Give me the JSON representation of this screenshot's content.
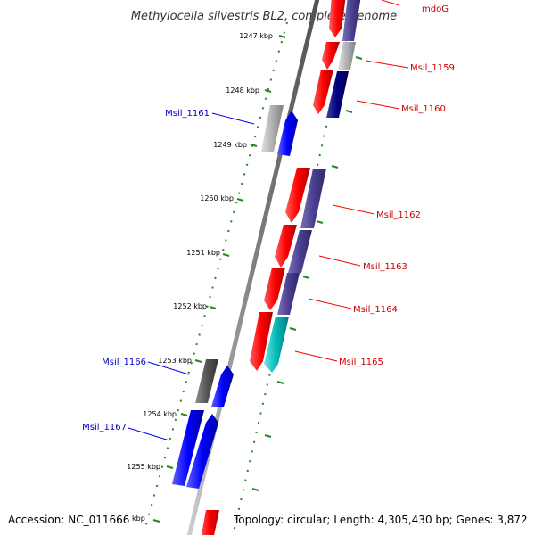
{
  "title": "Methylocella silvestris BL2, complete genome",
  "accession": "Accession: NC_011666",
  "topology": "Topology: circular; Length: 4,305,430 bp; Genes: 3,872",
  "scale_ticks": [
    "1247 kbp",
    "1248 kbp",
    "1249 kbp",
    "1250 kbp",
    "1251 kbp",
    "1252 kbp",
    "1253 kbp",
    "1254 kbp",
    "1255 kbp",
    "kbp"
  ],
  "genes_forward": [
    "mdoG",
    "Msil_1159",
    "Msil_1160",
    "Msil_1162",
    "Msil_1163",
    "Msil_1164",
    "Msil_1165"
  ],
  "genes_reverse": [
    "Msil_1161",
    "Msil_1166",
    "Msil_1167"
  ],
  "colors": {
    "forward_label": "#cc0000",
    "reverse_label": "#0000cc",
    "cds_forward": "#ff0000",
    "cds_reverse": "#0000ff",
    "blast_hit": "#4a4090",
    "rna": "#00b8b8",
    "other": "#a0a0a0",
    "dark_other": "#555555",
    "backbone": "#808080",
    "scale_dots": "#228822"
  }
}
